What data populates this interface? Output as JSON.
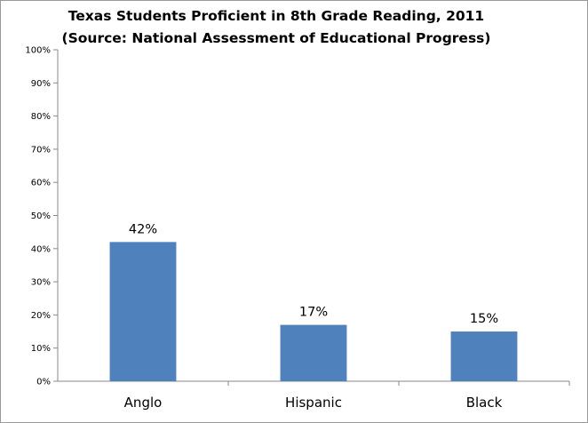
{
  "chart_data": {
    "type": "bar",
    "title": "Texas Students Proficient in 8th Grade Reading, 2011",
    "subtitle": "(Source: National Assessment of Educational Progress)",
    "categories": [
      "Anglo",
      "Hispanic",
      "Black"
    ],
    "values": [
      42,
      17,
      15
    ],
    "data_labels": [
      "42%",
      "17%",
      "15%"
    ],
    "y_ticks": [
      "0%",
      "10%",
      "20%",
      "30%",
      "40%",
      "50%",
      "60%",
      "70%",
      "80%",
      "90%",
      "100%"
    ],
    "ylim": [
      0,
      100
    ],
    "xlabel": "",
    "ylabel": "",
    "grid": false,
    "legend": "none",
    "bar_color": "#4f81bd"
  }
}
